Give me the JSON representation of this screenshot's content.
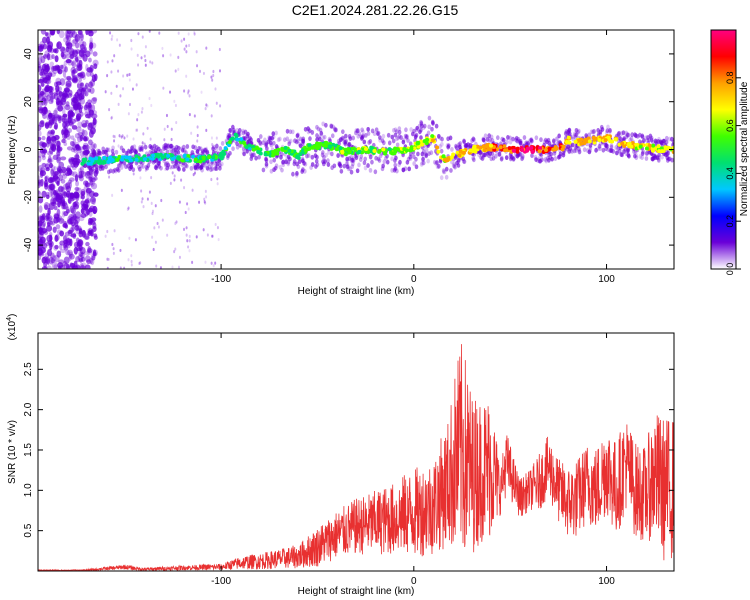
{
  "title": "C2E1.2024.281.22.26.G15",
  "colorbar": {
    "label": "Normalized spectral amplitude",
    "ticks": [
      "0.0",
      "0.2",
      "0.4",
      "0.6",
      "0.8"
    ],
    "stops": [
      "#ffffff",
      "#6a00d8",
      "#0000ff",
      "#00c8ff",
      "#00e070",
      "#40ff00",
      "#ffff00",
      "#ffa000",
      "#ff0000",
      "#ff0080"
    ]
  },
  "colors": {
    "snr_line": "#e83030",
    "freq_core": "#00e0c0",
    "freq_high": "#ff2020",
    "freq_halo": "#6a00d8"
  },
  "chart_data": [
    {
      "type": "heatmap",
      "xlabel": "Height of straight line (km)",
      "ylabel": "Frequency (Hz)",
      "xlim": [
        -195,
        135
      ],
      "ylim": [
        -50,
        50
      ],
      "xticks": [
        "-100",
        "0",
        "100"
      ],
      "yticks": [
        "40",
        "20",
        "0",
        "-20",
        "-40"
      ],
      "ridge": {
        "x": [
          -170,
          -150,
          -130,
          -110,
          -100,
          -93,
          -85,
          -75,
          -65,
          -60,
          -55,
          -45,
          -35,
          -25,
          -15,
          -5,
          0,
          5,
          10,
          15,
          20,
          30,
          40,
          50,
          60,
          70,
          78,
          80,
          85,
          95,
          100,
          110,
          120,
          130,
          135
        ],
        "y": [
          -5,
          -4,
          -3,
          -4,
          -3,
          6,
          1,
          -2,
          0,
          -3,
          1,
          2,
          -1,
          0,
          -1,
          0,
          1,
          3,
          5,
          -4,
          -3,
          0,
          1,
          0,
          0,
          0,
          1,
          4,
          3,
          4,
          5,
          2,
          1,
          0,
          0
        ]
      },
      "amplitude": {
        "x": [
          -170,
          -100,
          -60,
          -20,
          30,
          60,
          80,
          135
        ],
        "value": [
          0.4,
          0.45,
          0.5,
          0.55,
          0.7,
          0.95,
          0.75,
          0.65
        ]
      }
    },
    {
      "type": "line",
      "xlabel": "Height of straight line (km)",
      "ylabel": "SNR (10 * v/v)",
      "y_multiplier": "(x10",
      "y_multiplier_exp": "4",
      "y_multiplier_close": ")",
      "xlim": [
        -195,
        135
      ],
      "ylim": [
        0,
        2.95
      ],
      "xticks": [
        "-100",
        "0",
        "100"
      ],
      "yticks": [
        "0.5",
        "1.0",
        "1.5",
        "2.0",
        "2.5"
      ],
      "envelope": {
        "x": [
          -195,
          -170,
          -150,
          -140,
          -120,
          -100,
          -90,
          -80,
          -70,
          -60,
          -50,
          -40,
          -30,
          -20,
          -10,
          -5,
          0,
          10,
          18,
          22,
          25,
          28,
          30,
          35,
          40,
          45,
          48,
          52,
          55,
          60,
          65,
          70,
          75,
          80,
          85,
          90,
          95,
          100,
          105,
          110,
          115,
          120,
          125,
          130,
          135
        ],
        "base": [
          0.0,
          0.01,
          0.05,
          0.02,
          0.04,
          0.05,
          0.1,
          0.12,
          0.15,
          0.18,
          0.3,
          0.45,
          0.55,
          0.6,
          0.65,
          0.7,
          0.72,
          0.8,
          1.1,
          1.4,
          1.5,
          1.35,
          1.2,
          1.25,
          1.3,
          1.0,
          1.35,
          1.1,
          0.9,
          1.0,
          1.1,
          1.3,
          1.0,
          0.85,
          0.9,
          1.1,
          1.0,
          1.3,
          1.0,
          1.35,
          1.0,
          0.95,
          1.2,
          1.0,
          1.05
        ],
        "amp": [
          0.0,
          0.01,
          0.03,
          0.02,
          0.03,
          0.04,
          0.08,
          0.1,
          0.12,
          0.15,
          0.25,
          0.3,
          0.35,
          0.4,
          0.45,
          0.5,
          0.55,
          0.6,
          0.8,
          1.2,
          1.35,
          1.2,
          1.0,
          0.9,
          0.9,
          0.3,
          0.4,
          0.3,
          0.25,
          0.25,
          0.35,
          0.4,
          0.4,
          0.45,
          0.5,
          0.5,
          0.55,
          0.6,
          0.6,
          0.6,
          0.6,
          0.6,
          0.8,
          0.9,
          0.9
        ]
      }
    }
  ]
}
